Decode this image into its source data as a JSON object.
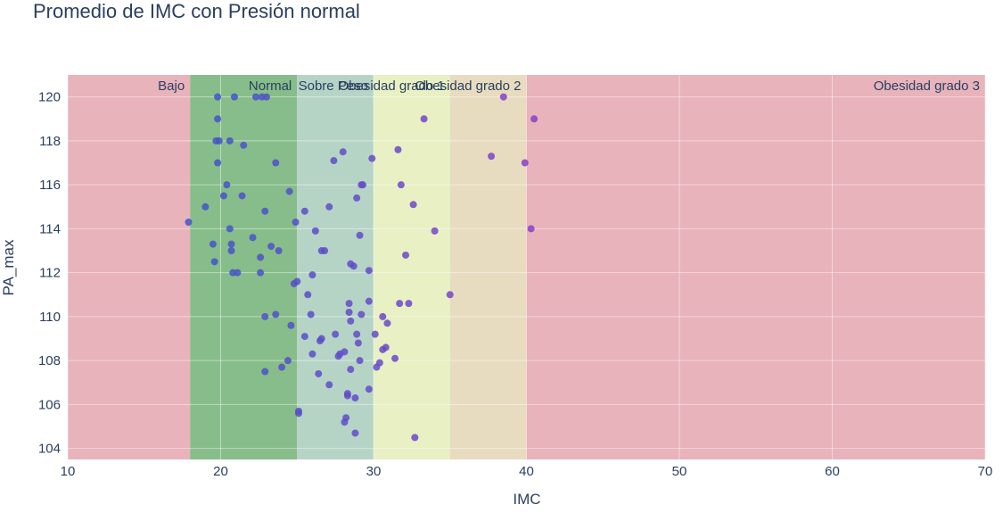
{
  "chart_data": {
    "type": "scatter",
    "title": "Promedio de IMC con Presión normal",
    "xlabel": "IMC",
    "ylabel": "PA_max",
    "xlim": [
      10,
      70
    ],
    "ylim": [
      103.5,
      121
    ],
    "x_ticks": [
      10,
      20,
      30,
      40,
      50,
      60,
      70
    ],
    "y_ticks": [
      104,
      106,
      108,
      110,
      112,
      114,
      116,
      118,
      120
    ],
    "grid": true,
    "background_color": "#ffffff",
    "point_color_low": "#3f56c8",
    "point_color_high": "#8a3fc8",
    "bands": [
      {
        "label": "Bajo",
        "x0": 10,
        "x1": 18,
        "color": "#e8b3bb",
        "label_x": 18,
        "anchor": "end"
      },
      {
        "label": "Normal",
        "x0": 18,
        "x1": 25,
        "color": "#87bd8a",
        "label_x": 25,
        "anchor": "end"
      },
      {
        "label": "Sobre Peso",
        "x0": 25,
        "x1": 30,
        "color": "#b6d4c6",
        "label_x": 30,
        "anchor": "end"
      },
      {
        "label": "Obesidad grado 1",
        "x0": 30,
        "x1": 35,
        "color": "#e8f0c4",
        "label_x": 35,
        "anchor": "end"
      },
      {
        "label": "Obesidad grado 2",
        "x0": 35,
        "x1": 40,
        "color": "#e8dcc0",
        "label_x": 40,
        "anchor": "end"
      },
      {
        "label": "Obesidad grado 3",
        "x0": 40,
        "x1": 70,
        "color": "#e8b3bb",
        "label_x": 70,
        "anchor": "end"
      }
    ],
    "points": [
      [
        17.9,
        114.3
      ],
      [
        19.0,
        115.0
      ],
      [
        19.5,
        113.3
      ],
      [
        19.6,
        112.5
      ],
      [
        19.8,
        120.0
      ],
      [
        19.8,
        119.0
      ],
      [
        19.7,
        118.0
      ],
      [
        19.9,
        118.0
      ],
      [
        19.8,
        117.0
      ],
      [
        20.2,
        115.5
      ],
      [
        20.4,
        116.0
      ],
      [
        20.6,
        114.0
      ],
      [
        20.7,
        113.3
      ],
      [
        20.7,
        113.0
      ],
      [
        20.8,
        112.0
      ],
      [
        20.9,
        120.0
      ],
      [
        20.6,
        118.0
      ],
      [
        21.1,
        112.0
      ],
      [
        21.4,
        115.5
      ],
      [
        21.5,
        117.8
      ],
      [
        22.1,
        113.6
      ],
      [
        22.3,
        120.0
      ],
      [
        22.6,
        112.7
      ],
      [
        22.6,
        112.0
      ],
      [
        22.7,
        120.0
      ],
      [
        23.0,
        120.0
      ],
      [
        22.9,
        114.8
      ],
      [
        22.9,
        110.0
      ],
      [
        22.9,
        107.5
      ],
      [
        23.3,
        113.2
      ],
      [
        23.6,
        117.0
      ],
      [
        23.6,
        110.1
      ],
      [
        23.8,
        113.0
      ],
      [
        24.0,
        107.7
      ],
      [
        24.4,
        108.0
      ],
      [
        24.5,
        115.7
      ],
      [
        24.6,
        109.6
      ],
      [
        24.8,
        111.5
      ],
      [
        25.0,
        111.6
      ],
      [
        24.9,
        114.3
      ],
      [
        25.1,
        105.7
      ],
      [
        25.1,
        105.6
      ],
      [
        25.5,
        114.8
      ],
      [
        25.5,
        109.1
      ],
      [
        25.7,
        111.0
      ],
      [
        25.9,
        110.1
      ],
      [
        26.0,
        108.3
      ],
      [
        26.0,
        111.9
      ],
      [
        26.2,
        113.9
      ],
      [
        26.4,
        107.4
      ],
      [
        26.6,
        113.0
      ],
      [
        26.6,
        109.0
      ],
      [
        26.5,
        108.9
      ],
      [
        26.8,
        113.0
      ],
      [
        27.1,
        115.0
      ],
      [
        27.1,
        106.9
      ],
      [
        27.4,
        117.1
      ],
      [
        27.5,
        109.2
      ],
      [
        27.7,
        108.2
      ],
      [
        27.8,
        108.3
      ],
      [
        28.0,
        117.5
      ],
      [
        28.1,
        108.4
      ],
      [
        28.1,
        105.2
      ],
      [
        28.2,
        105.4
      ],
      [
        28.3,
        106.5
      ],
      [
        28.3,
        106.4
      ],
      [
        28.4,
        110.6
      ],
      [
        28.4,
        110.2
      ],
      [
        28.5,
        109.8
      ],
      [
        28.5,
        107.6
      ],
      [
        28.5,
        112.4
      ],
      [
        28.7,
        112.3
      ],
      [
        28.8,
        104.7
      ],
      [
        28.8,
        106.3
      ],
      [
        28.9,
        115.4
      ],
      [
        28.9,
        109.2
      ],
      [
        29.0,
        108.8
      ],
      [
        29.1,
        108.0
      ],
      [
        29.1,
        113.7
      ],
      [
        29.2,
        110.1
      ],
      [
        29.2,
        116.0
      ],
      [
        29.3,
        116.0
      ],
      [
        29.7,
        112.1
      ],
      [
        29.7,
        110.7
      ],
      [
        29.7,
        106.7
      ],
      [
        29.9,
        117.2
      ],
      [
        30.1,
        109.2
      ],
      [
        30.2,
        107.7
      ],
      [
        30.4,
        107.9
      ],
      [
        30.6,
        110.0
      ],
      [
        30.6,
        108.5
      ],
      [
        30.8,
        108.6
      ],
      [
        30.9,
        109.7
      ],
      [
        31.4,
        108.1
      ],
      [
        31.6,
        117.6
      ],
      [
        31.7,
        110.6
      ],
      [
        31.8,
        116.0
      ],
      [
        32.1,
        112.8
      ],
      [
        32.3,
        110.6
      ],
      [
        32.6,
        115.1
      ],
      [
        32.7,
        104.5
      ],
      [
        33.3,
        119.0
      ],
      [
        34.0,
        113.9
      ],
      [
        35.0,
        111.0
      ],
      [
        37.7,
        117.3
      ],
      [
        38.5,
        120.0
      ],
      [
        39.9,
        117.0
      ],
      [
        40.3,
        114.0
      ],
      [
        40.5,
        119.0
      ]
    ]
  }
}
